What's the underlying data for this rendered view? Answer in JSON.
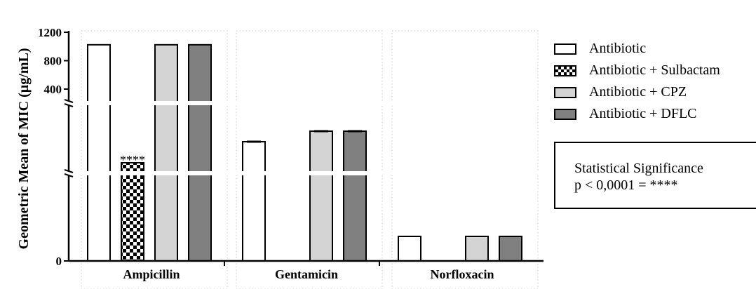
{
  "chart_data": {
    "type": "bar",
    "ylabel": "Geometric Mean of MIC (µg/mL)",
    "xlabel": "",
    "categories": [
      "Ampicillin",
      "Gentamicin",
      "Norfloxacin"
    ],
    "y_axis_broken": true,
    "y_tick_labels": [
      "0",
      "400",
      "800",
      "1200"
    ],
    "series": [
      {
        "name": "Antibiotic",
        "values": [
          1024,
          16,
          2
        ],
        "color": "#ffffff",
        "pattern": "none"
      },
      {
        "name": "Antibiotic + Sulbactam",
        "values": [
          8,
          0,
          0
        ],
        "color": "#000000",
        "pattern": "checkerboard"
      },
      {
        "name": "Antibiotic + CPZ",
        "values": [
          1024,
          32,
          2
        ],
        "color": "#d4d4d4",
        "pattern": "none"
      },
      {
        "name": "Antibiotic + DFLC",
        "values": [
          1024,
          32,
          2
        ],
        "color": "#808080",
        "pattern": "none"
      }
    ],
    "annotations": [
      {
        "category": "Ampicillin",
        "series": "Antibiotic + Sulbactam",
        "text": "****"
      }
    ],
    "grid": false,
    "legend_position": "right"
  },
  "legend": {
    "items": [
      {
        "label": "Antibiotic"
      },
      {
        "label": "Antibiotic + Sulbactam"
      },
      {
        "label": "Antibiotic + CPZ"
      },
      {
        "label": "Antibiotic + DFLC"
      }
    ]
  },
  "significance": {
    "title": "Statistical Significance",
    "rule": "p < 0,0001 = ****"
  }
}
